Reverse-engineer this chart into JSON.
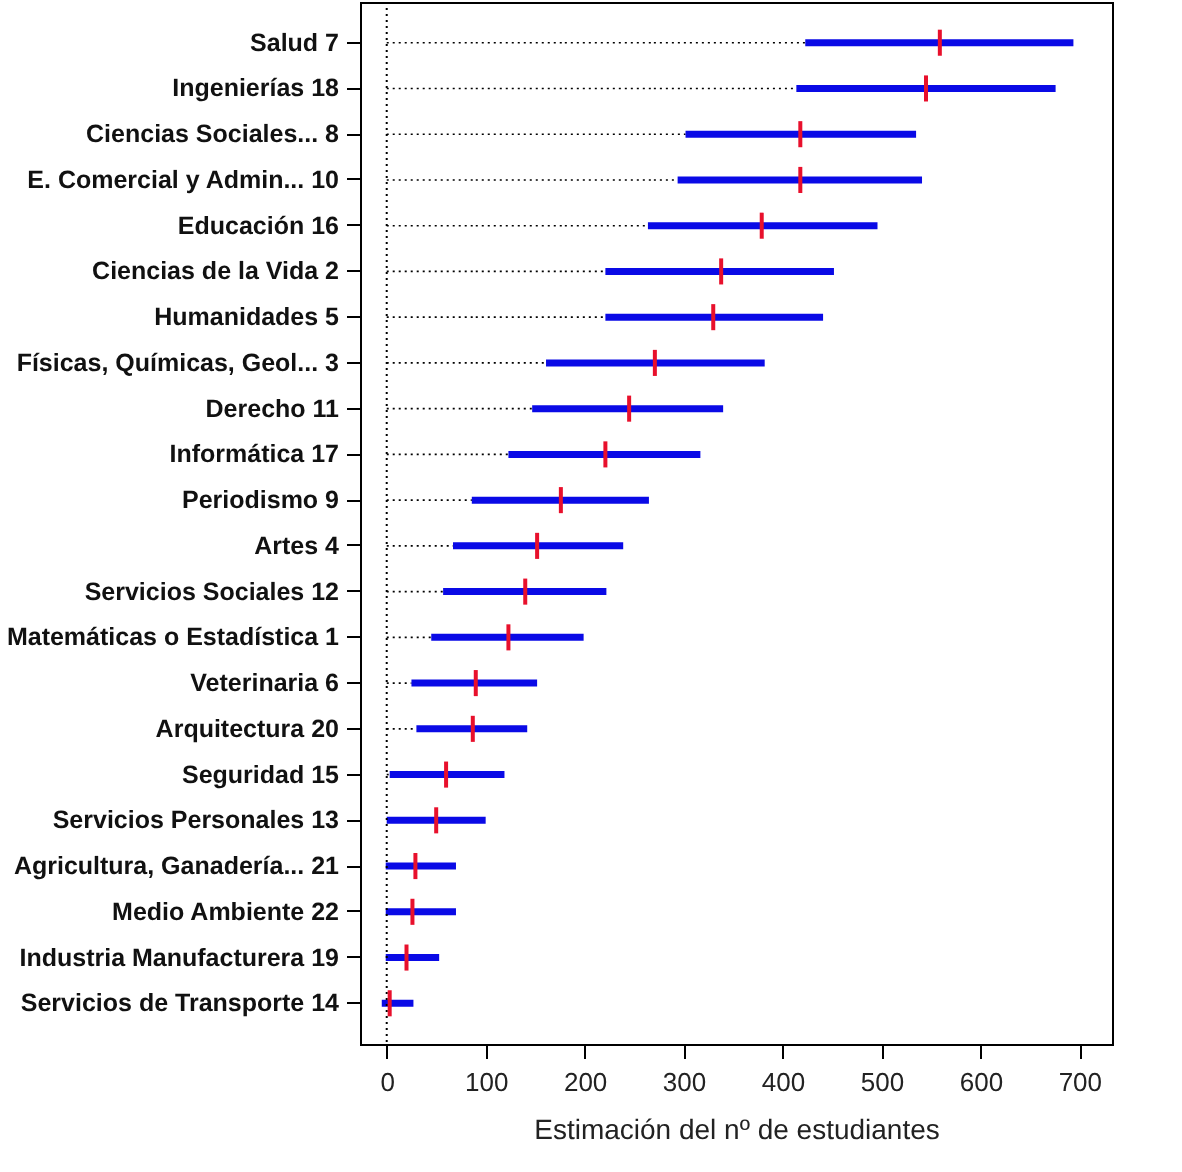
{
  "chart_data": {
    "type": "scatter",
    "orientation": "horizontal",
    "xlabel": "Estimación del nº de estudiantes",
    "categories": [
      "Salud 7",
      "Ingenierías 18",
      "Ciencias Sociales... 8",
      "E. Comercial y Admin... 10",
      "Educación 16",
      "Ciencias de la Vida 2",
      "Humanidades 5",
      "Físicas, Químicas, Geol... 3",
      "Derecho 11",
      "Informática 17",
      "Periodismo 9",
      "Artes 4",
      "Servicios Sociales 12",
      "Matemáticas o Estadística 1",
      "Veterinaria 6",
      "Arquitectura 20",
      "Seguridad 15",
      "Servicios Personales 13",
      "Agricultura, Ganadería... 21",
      "Medio Ambiente 22",
      "Industria Manufacturera 19",
      "Servicios de Transporte 14"
    ],
    "series": [
      {
        "color": "#e8102c",
        "values": [
          559,
          545,
          418,
          418,
          379,
          338,
          330,
          271,
          245,
          221,
          176,
          152,
          140,
          123,
          90,
          87,
          60,
          50,
          29,
          26,
          20,
          3
        ],
        "errors": [
          [
            423,
            694
          ],
          [
            414,
            676
          ],
          [
            302,
            535
          ],
          [
            294,
            541
          ],
          [
            264,
            496
          ],
          [
            221,
            452
          ],
          [
            221,
            441
          ],
          [
            161,
            382
          ],
          [
            147,
            340
          ],
          [
            123,
            317
          ],
          [
            86,
            265
          ],
          [
            67,
            239
          ],
          [
            57,
            222
          ],
          [
            45,
            199
          ],
          [
            25,
            152
          ],
          [
            30,
            142
          ],
          [
            3,
            119
          ],
          [
            0,
            100
          ],
          [
            -1,
            70
          ],
          [
            -1,
            70
          ],
          [
            -1,
            53
          ],
          [
            -5,
            27
          ]
        ]
      }
    ],
    "xlim": [
      -27,
      733
    ],
    "xticks": [
      0,
      100,
      200,
      300,
      400,
      500,
      600,
      700
    ],
    "ref_lines": [
      {
        "axis": "x",
        "value": 0,
        "line_style": "dotted",
        "color": "#000000"
      }
    ],
    "grid": false
  }
}
